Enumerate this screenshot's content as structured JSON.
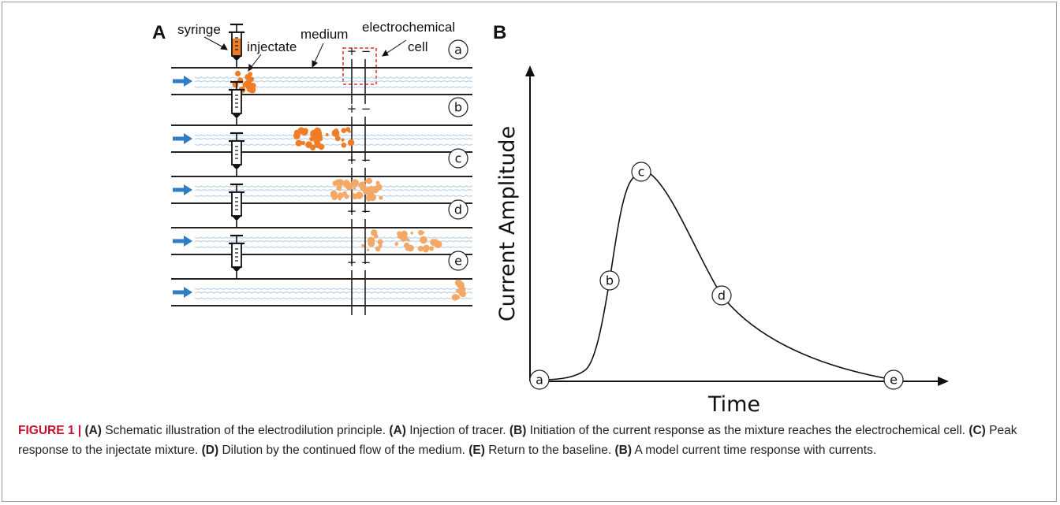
{
  "panel_a": {
    "label": "A",
    "labels": {
      "syringe": "syringe",
      "injectate": "injectate",
      "medium": "medium",
      "electrochemical": "electrochemical",
      "cell": "cell"
    },
    "electrode_signs": {
      "plus": "+",
      "minus": "−"
    },
    "stages": [
      {
        "marker": "a"
      },
      {
        "marker": "b"
      },
      {
        "marker": "c"
      },
      {
        "marker": "d"
      },
      {
        "marker": "e"
      }
    ],
    "colors": {
      "injectate_dark": "#f07d25",
      "injectate_light": "#f5a865",
      "flow_arrow": "#2f7dc4",
      "wave": "#a8c8e6",
      "cell_box": "#e02b2b"
    }
  },
  "panel_b": {
    "label": "B",
    "chart_data": {
      "type": "line",
      "xlabel": "Time",
      "ylabel": "Current Amplitude",
      "points": [
        {
          "label": "a"
        },
        {
          "label": "b"
        },
        {
          "label": "c"
        },
        {
          "label": "d"
        },
        {
          "label": "e"
        }
      ]
    }
  },
  "caption": {
    "fig_label": "FIGURE 1 |",
    "segments": [
      {
        "bold": true,
        "text": "(A)"
      },
      {
        "bold": false,
        "text": " Schematic illustration of the electrodilution principle. "
      },
      {
        "bold": true,
        "text": "(A)"
      },
      {
        "bold": false,
        "text": " Injection of tracer. "
      },
      {
        "bold": true,
        "text": "(B)"
      },
      {
        "bold": false,
        "text": " Initiation of the current response as the mixture reaches the electrochemical cell. "
      },
      {
        "bold": true,
        "text": "(C)"
      },
      {
        "bold": false,
        "text": " Peak response to the injectate mixture. "
      },
      {
        "bold": true,
        "text": "(D)"
      },
      {
        "bold": false,
        "text": " Dilution by the continued flow of the medium. "
      },
      {
        "bold": true,
        "text": "(E)"
      },
      {
        "bold": false,
        "text": " Return to the baseline. "
      },
      {
        "bold": true,
        "text": "(B)"
      },
      {
        "bold": false,
        "text": " A model current time response with currents."
      }
    ]
  }
}
